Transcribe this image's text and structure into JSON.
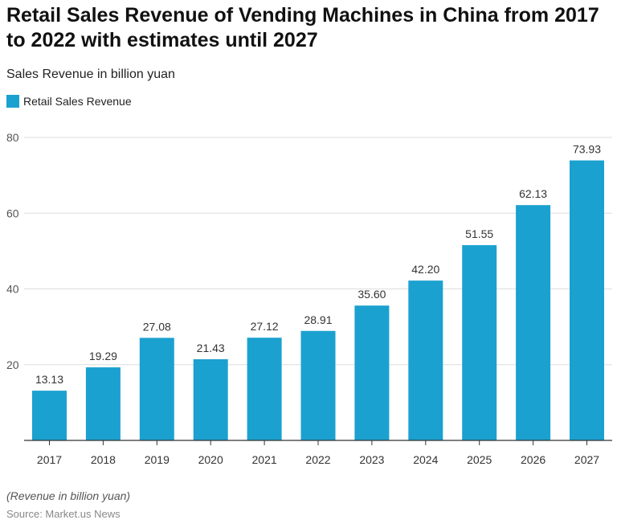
{
  "chart_data": {
    "type": "bar",
    "title": "Retail Sales Revenue of Vending Machines in China from 2017 to 2022 with estimates until 2027",
    "subtitle": "Sales Revenue in billion yuan",
    "categories": [
      "2017",
      "2018",
      "2019",
      "2020",
      "2021",
      "2022",
      "2023",
      "2024",
      "2025",
      "2026",
      "2027"
    ],
    "series": [
      {
        "name": "Retail Sales Revenue",
        "values": [
          13.13,
          19.29,
          27.08,
          21.43,
          27.12,
          28.91,
          35.6,
          42.2,
          51.55,
          62.13,
          73.93
        ],
        "color": "#1ba1cf"
      }
    ],
    "data_labels": [
      "13.13",
      "19.29",
      "27.08",
      "21.43",
      "27.12",
      "28.91",
      "35.60",
      "42.20",
      "51.55",
      "62.13",
      "73.93"
    ],
    "yticks": [
      20,
      40,
      60,
      80
    ],
    "ylim": [
      0,
      80
    ],
    "grid": true,
    "legend": "top-left",
    "note": "(Revenue in billion yuan)",
    "source": "Source: Market.us News"
  }
}
